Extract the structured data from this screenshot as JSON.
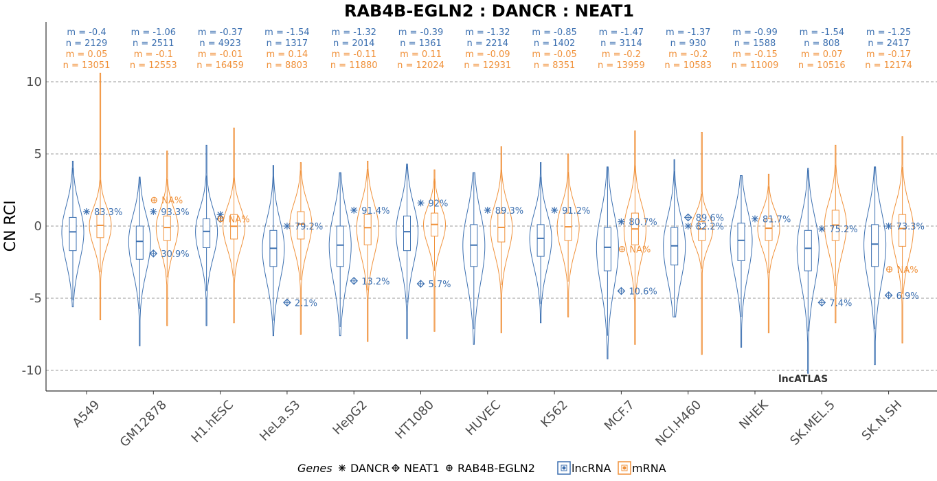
{
  "chart_data": {
    "type": "violin",
    "title": "RAB4B-EGLN2 : DANCR : NEAT1",
    "ylabel": "CN RCI",
    "ylim": [
      -11.5,
      13.5
    ],
    "yticks": [
      10,
      5,
      0,
      -5,
      -10
    ],
    "ytick_labels": [
      "10",
      "5",
      "0",
      "-5",
      "-10"
    ],
    "grid": "horizontal dashed",
    "watermark": "lncATLAS",
    "colors": {
      "lncRNA": "#3b6fb0",
      "mRNA": "#f0913a"
    },
    "legend": {
      "position": "bottom",
      "genes_title": "Genes",
      "genes": [
        {
          "name": "DANCR",
          "marker": "asterisk"
        },
        {
          "name": "NEAT1",
          "marker": "diamond-plus"
        },
        {
          "name": "RAB4B-EGLN2",
          "marker": "circle-plus"
        }
      ],
      "types": [
        "lncRNA",
        "mRNA"
      ]
    },
    "categories": [
      "A549",
      "GM12878",
      "H1.hESC",
      "HeLa.S3",
      "HepG2",
      "HT1080",
      "HUVEC",
      "K562",
      "MCF.7",
      "NCI.H460",
      "NHEK",
      "SK.MEL.5",
      "SK.N.SH"
    ],
    "groups": [
      {
        "cell": "A549",
        "lnc": {
          "m": "m = -0.4",
          "n": "n = 2129",
          "median": -0.4,
          "q1": -1.7,
          "q3": 0.6,
          "min": -5.6,
          "max": 4.5
        },
        "mrna": {
          "m": "m = 0.05",
          "n": "n = 13051",
          "median": 0.05,
          "q1": -0.8,
          "q3": 0.8,
          "min": -6.5,
          "max": 10.6
        },
        "genes": [
          {
            "gene": "DANCR",
            "value": 1.0,
            "label": "83.3%"
          }
        ]
      },
      {
        "cell": "GM12878",
        "lnc": {
          "m": "m = -1.06",
          "n": "n = 2511",
          "median": -1.06,
          "q1": -2.3,
          "q3": 0.0,
          "min": -8.3,
          "max": 3.4
        },
        "mrna": {
          "m": "m = -0.1",
          "n": "n = 12553",
          "median": -0.1,
          "q1": -1.0,
          "q3": 0.7,
          "min": -6.9,
          "max": 5.2
        },
        "genes": [
          {
            "gene": "DANCR",
            "value": 1.0,
            "label": "93.3%"
          },
          {
            "gene": "NEAT1",
            "value": -1.9,
            "label": "30.9%"
          },
          {
            "gene": "RAB4B-EGLN2",
            "value": 1.8,
            "label": "NA%"
          }
        ]
      },
      {
        "cell": "H1.hESC",
        "lnc": {
          "m": "m = -0.37",
          "n": "n = 4923",
          "median": -0.37,
          "q1": -1.5,
          "q3": 0.5,
          "min": -6.9,
          "max": 5.6
        },
        "mrna": {
          "m": "m = -0.01",
          "n": "n = 16459",
          "median": -0.01,
          "q1": -0.9,
          "q3": 0.8,
          "min": -6.7,
          "max": 6.8
        },
        "genes": [
          {
            "gene": "DANCR",
            "value": 0.8,
            "label": ""
          },
          {
            "gene": "NEAT1",
            "value": 0.5,
            "label": ""
          },
          {
            "gene": "RAB4B-EGLN2",
            "value": 0.5,
            "label": "NA%"
          }
        ]
      },
      {
        "cell": "HeLa.S3",
        "lnc": {
          "m": "m = -1.54",
          "n": "n = 1317",
          "median": -1.54,
          "q1": -2.8,
          "q3": -0.3,
          "min": -7.6,
          "max": 4.2
        },
        "mrna": {
          "m": "m = 0.14",
          "n": "n = 8803",
          "median": 0.14,
          "q1": -0.9,
          "q3": 1.0,
          "min": -7.5,
          "max": 4.4
        },
        "genes": [
          {
            "gene": "DANCR",
            "value": 0.0,
            "label": "79.2%"
          },
          {
            "gene": "NEAT1",
            "value": -5.3,
            "label": "2.1%"
          }
        ]
      },
      {
        "cell": "HepG2",
        "lnc": {
          "m": "m = -1.32",
          "n": "n = 2014",
          "median": -1.32,
          "q1": -2.8,
          "q3": 0.0,
          "min": -7.6,
          "max": 3.7
        },
        "mrna": {
          "m": "m = -0.11",
          "n": "n = 11880",
          "median": -0.11,
          "q1": -1.3,
          "q3": 0.8,
          "min": -8.0,
          "max": 4.5
        },
        "genes": [
          {
            "gene": "DANCR",
            "value": 1.1,
            "label": "91.4%"
          },
          {
            "gene": "NEAT1",
            "value": -3.8,
            "label": "13.2%"
          }
        ]
      },
      {
        "cell": "HT1080",
        "lnc": {
          "m": "m = -0.39",
          "n": "n = 1361",
          "median": -0.39,
          "q1": -1.7,
          "q3": 0.7,
          "min": -7.8,
          "max": 4.3
        },
        "mrna": {
          "m": "m = 0.11",
          "n": "n = 12024",
          "median": 0.11,
          "q1": -0.7,
          "q3": 0.9,
          "min": -7.3,
          "max": 3.9
        },
        "genes": [
          {
            "gene": "DANCR",
            "value": 1.6,
            "label": "92%"
          },
          {
            "gene": "NEAT1",
            "value": -4.0,
            "label": "5.7%"
          }
        ]
      },
      {
        "cell": "HUVEC",
        "lnc": {
          "m": "m = -1.32",
          "n": "n = 2214",
          "median": -1.32,
          "q1": -2.8,
          "q3": 0.1,
          "min": -8.2,
          "max": 3.7
        },
        "mrna": {
          "m": "m = -0.09",
          "n": "n = 12931",
          "median": -0.09,
          "q1": -1.1,
          "q3": 0.9,
          "min": -7.4,
          "max": 5.5
        },
        "genes": [
          {
            "gene": "DANCR",
            "value": 1.1,
            "label": "89.3%"
          }
        ]
      },
      {
        "cell": "K562",
        "lnc": {
          "m": "m = -0.85",
          "n": "n = 1402",
          "median": -0.85,
          "q1": -2.1,
          "q3": 0.1,
          "min": -6.7,
          "max": 4.4
        },
        "mrna": {
          "m": "m = -0.05",
          "n": "n = 8351",
          "median": -0.05,
          "q1": -1.0,
          "q3": 0.9,
          "min": -6.3,
          "max": 5.0
        },
        "genes": [
          {
            "gene": "DANCR",
            "value": 1.1,
            "label": "91.2%"
          }
        ]
      },
      {
        "cell": "MCF.7",
        "lnc": {
          "m": "m = -1.47",
          "n": "n = 3114",
          "median": -1.47,
          "q1": -3.1,
          "q3": -0.1,
          "min": -9.2,
          "max": 4.1
        },
        "mrna": {
          "m": "m = -0.2",
          "n": "n = 13959",
          "median": -0.2,
          "q1": -1.3,
          "q3": 0.9,
          "min": -8.2,
          "max": 6.6
        },
        "genes": [
          {
            "gene": "DANCR",
            "value": 0.3,
            "label": "80.7%"
          },
          {
            "gene": "NEAT1",
            "value": -4.5,
            "label": "10.6%"
          },
          {
            "gene": "RAB4B-EGLN2",
            "value": -1.6,
            "label": "NA%"
          }
        ]
      },
      {
        "cell": "NCI.H460",
        "lnc": {
          "m": "m = -1.37",
          "n": "n = 930",
          "median": -1.37,
          "q1": -2.7,
          "q3": -0.1,
          "min": -6.3,
          "max": 4.6
        },
        "mrna": {
          "m": "m = -0.2",
          "n": "n = 10583",
          "median": -0.2,
          "q1": -1.0,
          "q3": 0.3,
          "min": -8.9,
          "max": 6.5
        },
        "genes": [
          {
            "gene": "DANCR",
            "value": 0.0,
            "label": "82.2%"
          },
          {
            "gene": "NEAT1",
            "value": 0.6,
            "label": "89.6%"
          }
        ]
      },
      {
        "cell": "NHEK",
        "lnc": {
          "m": "m = -0.99",
          "n": "n = 1588",
          "median": -0.99,
          "q1": -2.4,
          "q3": 0.2,
          "min": -8.4,
          "max": 3.5
        },
        "mrna": {
          "m": "m = -0.15",
          "n": "n = 11009",
          "median": -0.15,
          "q1": -1.0,
          "q3": 0.5,
          "min": -7.4,
          "max": 3.6
        },
        "genes": [
          {
            "gene": "DANCR",
            "value": 0.5,
            "label": "81.7%"
          }
        ]
      },
      {
        "cell": "SK.MEL.5",
        "lnc": {
          "m": "m = -1.54",
          "n": "n = 808",
          "median": -1.54,
          "q1": -3.1,
          "q3": -0.3,
          "min": -10.2,
          "max": 4.0
        },
        "mrna": {
          "m": "m = 0.07",
          "n": "n = 10516",
          "median": 0.07,
          "q1": -1.0,
          "q3": 1.1,
          "min": -6.7,
          "max": 5.6
        },
        "genes": [
          {
            "gene": "DANCR",
            "value": -0.2,
            "label": "75.2%"
          },
          {
            "gene": "NEAT1",
            "value": -5.3,
            "label": "7.4%"
          }
        ]
      },
      {
        "cell": "SK.N.SH",
        "lnc": {
          "m": "m = -1.25",
          "n": "n = 2417",
          "median": -1.25,
          "q1": -2.8,
          "q3": 0.1,
          "min": -9.6,
          "max": 4.1
        },
        "mrna": {
          "m": "m = -0.17",
          "n": "n = 12174",
          "median": -0.17,
          "q1": -1.4,
          "q3": 0.8,
          "min": -8.1,
          "max": 6.2
        },
        "genes": [
          {
            "gene": "DANCR",
            "value": 0.0,
            "label": "73.3%"
          },
          {
            "gene": "NEAT1",
            "value": -4.8,
            "label": "6.9%"
          },
          {
            "gene": "RAB4B-EGLN2",
            "value": -3.0,
            "label": "NA%"
          }
        ]
      }
    ]
  }
}
